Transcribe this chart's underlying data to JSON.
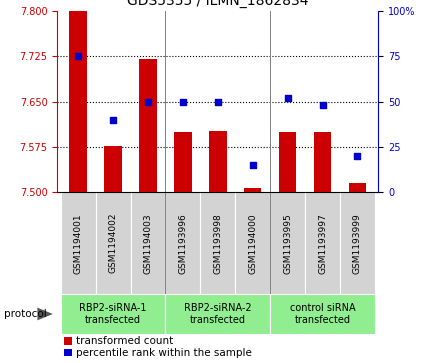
{
  "title": "GDS5355 / ILMN_1862834",
  "samples": [
    "GSM1194001",
    "GSM1194002",
    "GSM1194003",
    "GSM1193996",
    "GSM1193998",
    "GSM1194000",
    "GSM1193995",
    "GSM1193997",
    "GSM1193999"
  ],
  "transformed_count": [
    7.8,
    7.577,
    7.72,
    7.6,
    7.602,
    7.508,
    7.6,
    7.6,
    7.515
  ],
  "percentile_rank": [
    75,
    40,
    50,
    50,
    50,
    15,
    52,
    48,
    20
  ],
  "ylim_left": [
    7.5,
    7.8
  ],
  "ylim_right": [
    0,
    100
  ],
  "yticks_left": [
    7.5,
    7.575,
    7.65,
    7.725,
    7.8
  ],
  "yticks_right": [
    0,
    25,
    50,
    75,
    100
  ],
  "bar_color": "#cc0000",
  "dot_color": "#0000cc",
  "bar_width": 0.5,
  "groups": [
    {
      "label": "RBP2-siRNA-1\ntransfected",
      "start": 0,
      "end": 3,
      "color": "#90ee90"
    },
    {
      "label": "RBP2-siRNA-2\ntransfected",
      "start": 3,
      "end": 6,
      "color": "#90ee90"
    },
    {
      "label": "control siRNA\ntransfected",
      "start": 6,
      "end": 9,
      "color": "#90ee90"
    }
  ],
  "protocol_label": "protocol",
  "legend_items": [
    {
      "label": "transformed count",
      "color": "#cc0000"
    },
    {
      "label": "percentile rank within the sample",
      "color": "#0000cc"
    }
  ],
  "title_fontsize": 10,
  "tick_fontsize": 7,
  "sample_fontsize": 6.5,
  "group_fontsize": 7,
  "legend_fontsize": 7.5,
  "protocol_fontsize": 7.5
}
